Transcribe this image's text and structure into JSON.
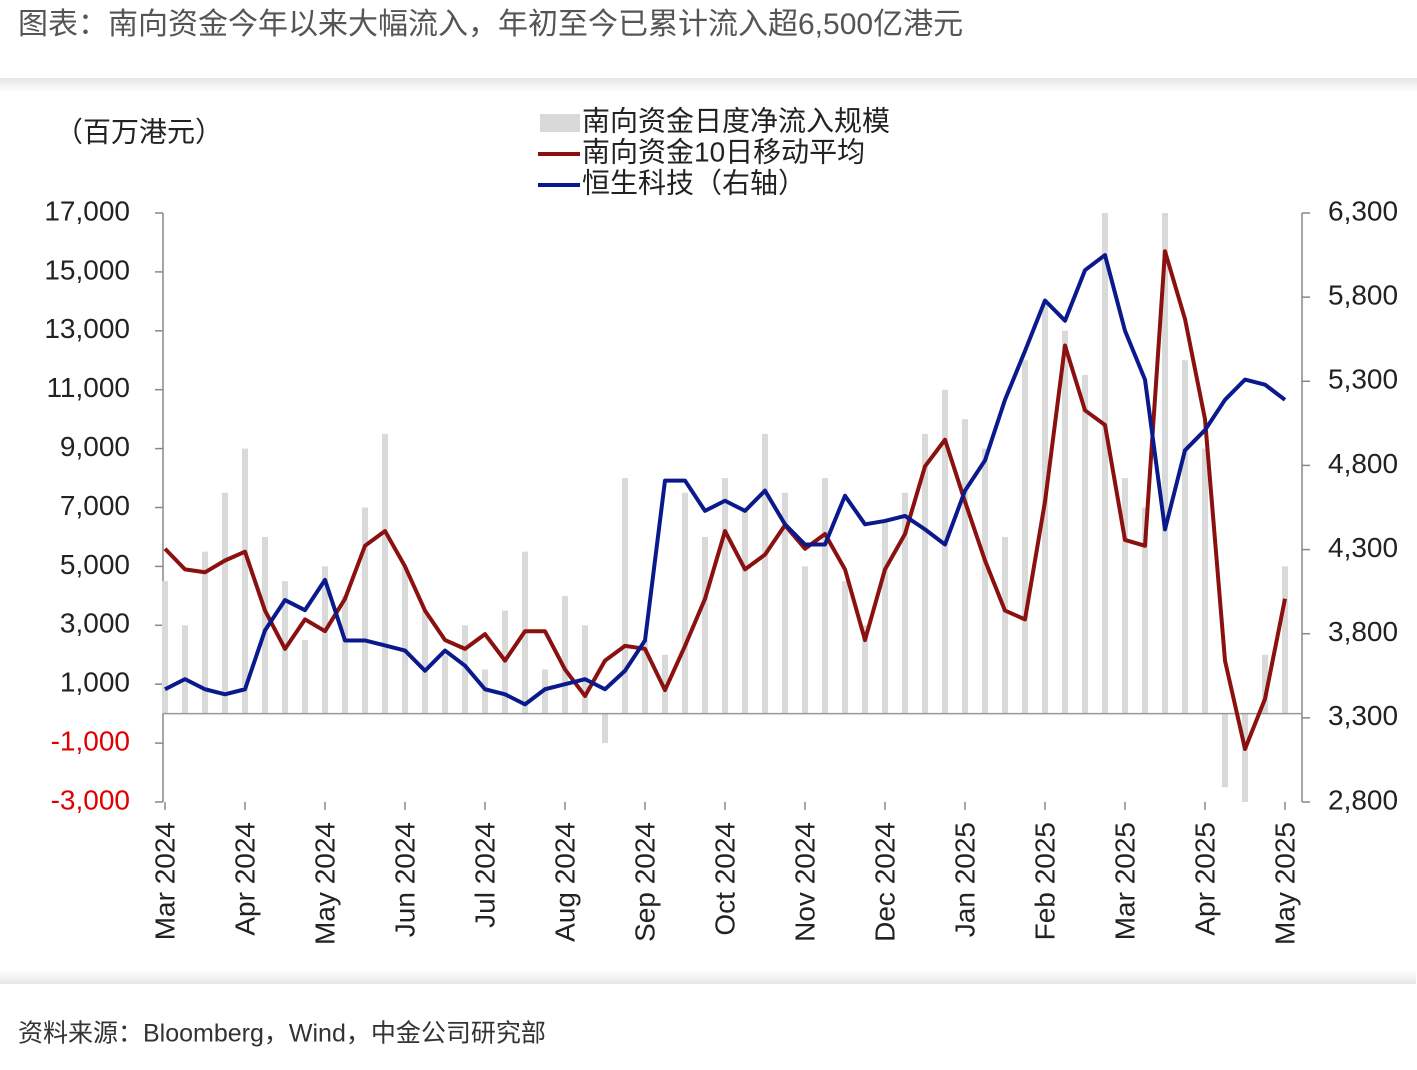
{
  "chart_data": {
    "type": "bar-line",
    "title": "图表：南向资金今年以来大幅流入，年初至今已累计流入超6,500亿港元",
    "y_label": "（百万港元）",
    "source": "资料来源：Bloomberg，Wind，中金公司研究部",
    "xticks": [
      "Mar 2024",
      "Apr 2024",
      "May 2024",
      "Jun 2024",
      "Jul 2024",
      "Aug 2024",
      "Sep 2024",
      "Oct 2024",
      "Nov 2024",
      "Dec 2024",
      "Jan 2025",
      "Feb 2025",
      "Mar 2025",
      "Apr 2025",
      "May 2025"
    ],
    "x": [
      "Mar 2024",
      "Mar 2024",
      "Mar 2024",
      "Mar 2024",
      "Apr 2024",
      "Apr 2024",
      "Apr 2024",
      "Apr 2024",
      "May 2024",
      "May 2024",
      "May 2024",
      "May 2024",
      "Jun 2024",
      "Jun 2024",
      "Jun 2024",
      "Jun 2024",
      "Jul 2024",
      "Jul 2024",
      "Jul 2024",
      "Jul 2024",
      "Aug 2024",
      "Aug 2024",
      "Aug 2024",
      "Aug 2024",
      "Sep 2024",
      "Sep 2024",
      "Sep 2024",
      "Sep 2024",
      "Oct 2024",
      "Oct 2024",
      "Oct 2024",
      "Oct 2024",
      "Nov 2024",
      "Nov 2024",
      "Nov 2024",
      "Nov 2024",
      "Dec 2024",
      "Dec 2024",
      "Dec 2024",
      "Dec 2024",
      "Jan 2025",
      "Jan 2025",
      "Jan 2025",
      "Jan 2025",
      "Feb 2025",
      "Feb 2025",
      "Feb 2025",
      "Feb 2025",
      "Mar 2025",
      "Mar 2025",
      "Mar 2025",
      "Mar 2025",
      "Apr 2025",
      "Apr 2025",
      "Apr 2025",
      "Apr 2025",
      "May 2025"
    ],
    "ylim": [
      -3000,
      17000
    ],
    "yticks": [
      {
        "value": -3000,
        "label": "-3,000"
      },
      {
        "value": -1000,
        "label": "-1,000"
      },
      {
        "value": 1000,
        "label": "1,000"
      },
      {
        "value": 3000,
        "label": "3,000"
      },
      {
        "value": 5000,
        "label": "5,000"
      },
      {
        "value": 7000,
        "label": "7,000"
      },
      {
        "value": 9000,
        "label": "9,000"
      },
      {
        "value": 11000,
        "label": "11,000"
      },
      {
        "value": 13000,
        "label": "13,000"
      },
      {
        "value": 15000,
        "label": "15,000"
      },
      {
        "value": 17000,
        "label": "17,000"
      }
    ],
    "negative_tick_color": "#e00000",
    "y2lim": [
      2800,
      6300
    ],
    "y2ticks": [
      {
        "value": 2800,
        "label": "2,800"
      },
      {
        "value": 3300,
        "label": "3,300"
      },
      {
        "value": 3800,
        "label": "3,800"
      },
      {
        "value": 4300,
        "label": "4,300"
      },
      {
        "value": 4800,
        "label": "4,800"
      },
      {
        "value": 5300,
        "label": "5,300"
      },
      {
        "value": 5800,
        "label": "5,800"
      },
      {
        "value": 6300,
        "label": "6,300"
      }
    ],
    "series": [
      {
        "name": "南向资金日度净流入规模",
        "type": "bar",
        "color": "#d9d9d9",
        "values": [
          4500,
          3000,
          5500,
          7500,
          9000,
          6000,
          4500,
          2500,
          5000,
          4000,
          7000,
          9500,
          5000,
          3500,
          2000,
          3000,
          1500,
          3500,
          5500,
          1500,
          4000,
          3000,
          -1000,
          8000,
          2500,
          2000,
          7500,
          6000,
          8000,
          7000,
          9500,
          7500,
          5000,
          8000,
          4500,
          3000,
          6500,
          7500,
          9500,
          11000,
          10000,
          9000,
          6000,
          12000,
          14000,
          13000,
          11500,
          17000,
          8000,
          7000,
          17000,
          12000,
          9000,
          -2500,
          -3000,
          2000,
          5000
        ]
      },
      {
        "name": "南向资金10日移动平均",
        "type": "line",
        "color": "#8b1010",
        "values": [
          5600,
          4900,
          4800,
          5200,
          5500,
          3500,
          2200,
          3200,
          2800,
          3900,
          5700,
          6200,
          5000,
          3500,
          2500,
          2200,
          2700,
          1800,
          2800,
          2800,
          1500,
          600,
          1800,
          2300,
          2200,
          800,
          2300,
          3900,
          6200,
          4900,
          5400,
          6400,
          5600,
          6100,
          4900,
          2500,
          4900,
          6100,
          8400,
          9300,
          7200,
          5200,
          3500,
          3200,
          7200,
          12500,
          10300,
          9800,
          5900,
          5700,
          15700,
          13400,
          10000,
          1800,
          -1200,
          500,
          3900
        ]
      },
      {
        "name": "恒生科技（右轴）",
        "type": "line",
        "axis": "y2",
        "color": "#0a1a8c",
        "values": [
          3470,
          3530,
          3470,
          3440,
          3470,
          3820,
          4000,
          3940,
          4120,
          3760,
          3760,
          3730,
          3700,
          3580,
          3700,
          3610,
          3470,
          3440,
          3380,
          3470,
          3500,
          3530,
          3470,
          3580,
          3760,
          4710,
          4710,
          4530,
          4590,
          4530,
          4650,
          4450,
          4330,
          4330,
          4620,
          4450,
          4470,
          4500,
          4420,
          4330,
          4650,
          4830,
          5190,
          5480,
          5780,
          5660,
          5960,
          6050,
          5600,
          5310,
          4420,
          4890,
          5010,
          5190,
          5310,
          5280,
          5190
        ]
      }
    ]
  }
}
